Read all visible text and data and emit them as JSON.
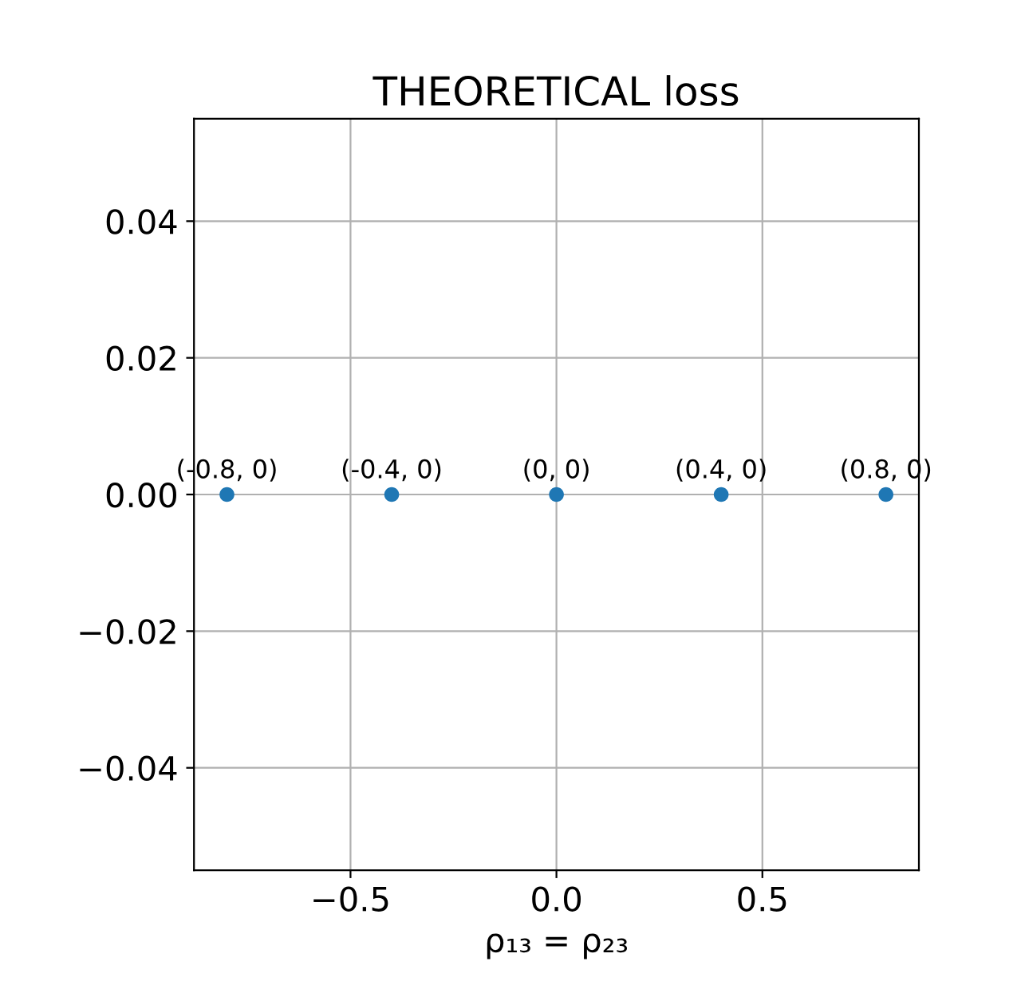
{
  "chart_data": {
    "type": "scatter",
    "title": "THEORETICAL loss",
    "xlabel": "ρ₁₃ = ρ₂₃",
    "x": [
      -0.8,
      -0.4,
      0,
      0.4,
      0.8
    ],
    "values": [
      0,
      0,
      0,
      0,
      0
    ],
    "color": "#1f77b4",
    "xlim": [
      -0.88,
      0.88
    ],
    "ylim": [
      -0.055,
      0.055
    ],
    "xticks": [
      {
        "value": -0.5,
        "label": "−0.5"
      },
      {
        "value": 0,
        "label": "0.0"
      },
      {
        "value": 0.5,
        "label": "0.5"
      }
    ],
    "yticks": [
      {
        "value": -0.04,
        "label": "−0.04"
      },
      {
        "value": -0.02,
        "label": "−0.02"
      },
      {
        "value": 0,
        "label": "0.00"
      },
      0.02,
      0.04
    ],
    "grid": true,
    "marker": "circle",
    "annotations": [
      {
        "text": "(-0.8, 0)",
        "x": -0.8,
        "y": 0
      },
      {
        "text": "(-0.4, 0)",
        "x": -0.4,
        "y": 0
      },
      {
        "text": "(0, 0)",
        "x": 0,
        "y": 0
      },
      {
        "text": "(0.4, 0)",
        "x": 0.4,
        "y": 0
      },
      {
        "text": "(0.8, 0)",
        "x": 0.8,
        "y": 0
      }
    ]
  }
}
